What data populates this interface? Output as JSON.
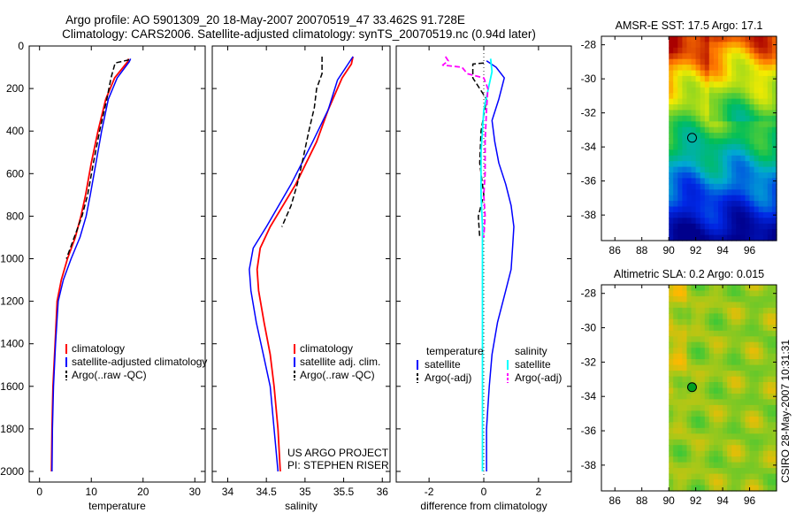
{
  "title_line1": "Argo profile: AO 5901309_20 18-May-2007 20070519_47 33.462S 91.728E",
  "title_line2": "Climatology: CARS2006. Satellite-adjusted climatology: synTS_20070519.nc (0.94d later)",
  "side_label": "CSIRO 28-May-2007 10:31:31",
  "colors": {
    "climatology": "#ff0000",
    "satellite": "#0000ff",
    "argo": "#000000",
    "salinity_sat": "#00ffff",
    "salinity_argo": "#ff00ff"
  },
  "chart_data": [
    {
      "type": "line",
      "id": "temperature",
      "xlabel": "temperature",
      "xlim": [
        -2,
        32
      ],
      "ylim": [
        0,
        2050
      ],
      "xticks": [
        "0",
        "10",
        "20",
        "30"
      ],
      "xtick_values": [
        0,
        10,
        20,
        30
      ],
      "yticks": [
        "0",
        "200",
        "400",
        "600",
        "800",
        "1000",
        "1200",
        "1400",
        "1600",
        "1800",
        "2000"
      ],
      "ytick_values": [
        0,
        200,
        400,
        600,
        800,
        1000,
        1200,
        1400,
        1600,
        1800,
        2000
      ],
      "legend": [
        "climatology",
        "satellite-adjusted climatology",
        "Argo(..raw -QC)"
      ],
      "series": [
        {
          "name": "climatology",
          "color": "#ff0000",
          "style": "solid",
          "width": 1.8,
          "x": [
            17.2,
            17.0,
            14.5,
            12.8,
            11.3,
            10.0,
            8.9,
            8.0,
            6.9,
            5.4,
            4.2,
            3.4,
            3.0,
            2.6,
            2.4,
            2.3
          ],
          "y": [
            60,
            75,
            150,
            250,
            400,
            550,
            700,
            800,
            900,
            1000,
            1100,
            1200,
            1400,
            1600,
            1800,
            2000
          ]
        },
        {
          "name": "satellite-adjusted climatology",
          "color": "#0000ff",
          "style": "solid",
          "width": 1.5,
          "x": [
            17.6,
            17.3,
            15.0,
            13.3,
            12.0,
            10.9,
            9.8,
            9.0,
            7.8,
            6.1,
            4.6,
            3.6,
            3.1,
            2.7,
            2.5,
            2.4
          ],
          "y": [
            60,
            75,
            150,
            250,
            400,
            550,
            700,
            800,
            900,
            1000,
            1100,
            1200,
            1400,
            1600,
            1800,
            2000
          ]
        },
        {
          "name": "Argo(..raw -QC)",
          "color": "#000000",
          "style": "dash",
          "width": 1.5,
          "x": [
            17.3,
            14.6,
            13.8,
            13.0,
            11.6,
            10.4,
            9.3,
            8.2,
            6.7,
            5.2
          ],
          "y": [
            65,
            80,
            150,
            250,
            400,
            550,
            700,
            800,
            900,
            1000
          ]
        }
      ]
    },
    {
      "type": "line",
      "id": "salinity",
      "xlabel": "salinity",
      "xlim": [
        33.8,
        36.1
      ],
      "ylim": [
        0,
        2050
      ],
      "xticks": [
        "34",
        "34.5",
        "35",
        "35.5",
        "36"
      ],
      "xtick_values": [
        34,
        34.5,
        35,
        35.5,
        36
      ],
      "legend": [
        "climatology",
        "satellite adj. clim.",
        "Argo(..raw -QC)"
      ],
      "annotation": [
        "US ARGO PROJECT",
        "PI: STEPHEN RISER"
      ],
      "series": [
        {
          "name": "climatology",
          "color": "#ff0000",
          "style": "solid",
          "width": 1.8,
          "x": [
            35.62,
            35.6,
            35.48,
            35.3,
            35.15,
            34.88,
            34.55,
            34.42,
            34.38,
            34.4,
            34.47,
            34.55,
            34.6,
            34.65,
            34.68
          ],
          "y": [
            50,
            85,
            150,
            300,
            450,
            650,
            850,
            950,
            1050,
            1150,
            1300,
            1450,
            1600,
            1800,
            2000
          ]
        },
        {
          "name": "satellite adj. clim.",
          "color": "#0000ff",
          "style": "solid",
          "width": 1.5,
          "x": [
            35.62,
            35.42,
            35.3,
            35.1,
            34.82,
            34.5,
            34.33,
            34.28,
            34.3,
            34.37,
            34.46,
            34.55,
            34.6,
            34.65
          ],
          "y": [
            50,
            160,
            300,
            450,
            650,
            850,
            950,
            1050,
            1150,
            1300,
            1450,
            1600,
            1800,
            2000
          ]
        },
        {
          "name": "Argo(..raw -QC)",
          "color": "#000000",
          "style": "dash",
          "width": 1.5,
          "x": [
            35.22,
            35.22,
            35.15,
            35.12,
            35.05,
            34.98,
            34.9,
            34.82,
            34.7
          ],
          "y": [
            50,
            130,
            200,
            290,
            400,
            520,
            650,
            750,
            850
          ]
        }
      ]
    },
    {
      "type": "line",
      "id": "difference",
      "xlabel": "difference from climatology",
      "xlim": [
        -3.2,
        3.2
      ],
      "ylim": [
        0,
        2050
      ],
      "xticks": [
        "-2",
        "0",
        "2"
      ],
      "xtick_values": [
        -2,
        0,
        2
      ],
      "legend_headers": [
        "temperature",
        "salinity"
      ],
      "legend": [
        "satellite",
        "Argo(-adj)",
        "satellite",
        "Argo(-adj)"
      ],
      "series": [
        {
          "name": "temperature satellite",
          "color": "#0000ff",
          "style": "solid",
          "width": 1.5,
          "x": [
            0.1,
            0.45,
            0.75,
            0.55,
            0.3,
            0.4,
            0.55,
            0.8,
            1.0,
            1.1,
            1.05,
            1.0,
            0.8,
            0.5,
            0.3,
            0.2,
            0.15,
            0.1,
            0.1,
            0.1
          ],
          "y": [
            70,
            100,
            150,
            250,
            350,
            450,
            550,
            650,
            750,
            850,
            950,
            1050,
            1150,
            1300,
            1450,
            1600,
            1700,
            1800,
            1900,
            2000
          ]
        },
        {
          "name": "temperature Argo(-adj)",
          "color": "#000000",
          "style": "dash",
          "width": 1.5,
          "x": [
            0.0,
            -0.4,
            -0.4,
            0.1,
            -0.1,
            -0.15,
            0.0,
            -0.2,
            -0.15
          ],
          "y": [
            80,
            85,
            150,
            250,
            400,
            550,
            700,
            800,
            900
          ]
        },
        {
          "name": "salinity satellite",
          "color": "#00ffff",
          "style": "solid",
          "width": 1.8,
          "x": [
            0.25,
            0.3,
            0.0,
            -0.1,
            -0.1,
            -0.05,
            -0.05,
            -0.05,
            -0.05,
            -0.05,
            -0.05,
            -0.05,
            -0.05,
            -0.05,
            -0.05
          ],
          "y": [
            60,
            120,
            300,
            500,
            700,
            850,
            1000,
            1150,
            1300,
            1450,
            1600,
            1750,
            1850,
            1950,
            2000
          ]
        },
        {
          "name": "salinity Argo(-adj)",
          "color": "#ff00ff",
          "style": "dash",
          "width": 1.8,
          "x": [
            -1.4,
            -1.3,
            -1.5,
            -0.8,
            -0.6,
            0.0,
            0.15,
            0.1,
            0.05,
            0.05,
            0.0,
            0.05,
            0.0
          ],
          "y": [
            50,
            70,
            90,
            100,
            130,
            150,
            200,
            300,
            450,
            600,
            700,
            800,
            900
          ]
        }
      ]
    },
    {
      "type": "heatmap",
      "id": "sst_map",
      "title": "AMSR-E SST: 17.5 Argo: 17.1",
      "xlim": [
        85,
        98
      ],
      "ylim": [
        -39.5,
        -27.5
      ],
      "xticks": [
        "86",
        "88",
        "90",
        "92",
        "94",
        "96"
      ],
      "xtick_values": [
        86,
        88,
        90,
        92,
        94,
        96
      ],
      "yticks": [
        "-28",
        "-30",
        "-32",
        "-34",
        "-36",
        "-38"
      ],
      "ytick_values": [
        -28,
        -30,
        -32,
        -34,
        -36,
        -38
      ],
      "data_xrange": [
        90,
        98
      ],
      "argo_position": {
        "lon": 91.728,
        "lat": -33.462
      }
    },
    {
      "type": "heatmap",
      "id": "sla_map",
      "title": "Altimetric SLA: 0.2 Argo: 0.015",
      "xlim": [
        85,
        98
      ],
      "ylim": [
        -39.5,
        -27.5
      ],
      "xticks": [
        "86",
        "88",
        "90",
        "92",
        "94",
        "96"
      ],
      "xtick_values": [
        86,
        88,
        90,
        92,
        94,
        96
      ],
      "yticks": [
        "-28",
        "-30",
        "-32",
        "-34",
        "-36",
        "-38"
      ],
      "ytick_values": [
        -28,
        -30,
        -32,
        -34,
        -36,
        -38
      ],
      "data_xrange": [
        90,
        98
      ],
      "argo_position": {
        "lon": 91.728,
        "lat": -33.462
      }
    }
  ]
}
